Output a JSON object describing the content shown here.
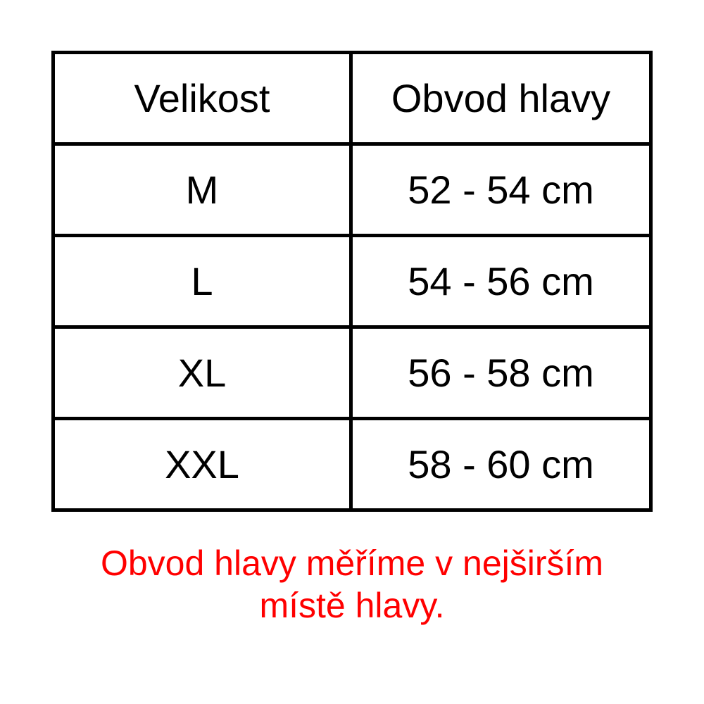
{
  "table": {
    "headers": [
      "Velikost",
      "Obvod hlavy"
    ],
    "rows": [
      [
        "M",
        "52 - 54 cm"
      ],
      [
        "L",
        "54 - 56 cm"
      ],
      [
        "XL",
        "56 - 58 cm"
      ],
      [
        "XXL",
        "58 - 60 cm"
      ]
    ]
  },
  "note": {
    "line1": "Obvod hlavy měříme v nejširším",
    "line2": "místě hlavy.",
    "color": "#ff0000"
  }
}
